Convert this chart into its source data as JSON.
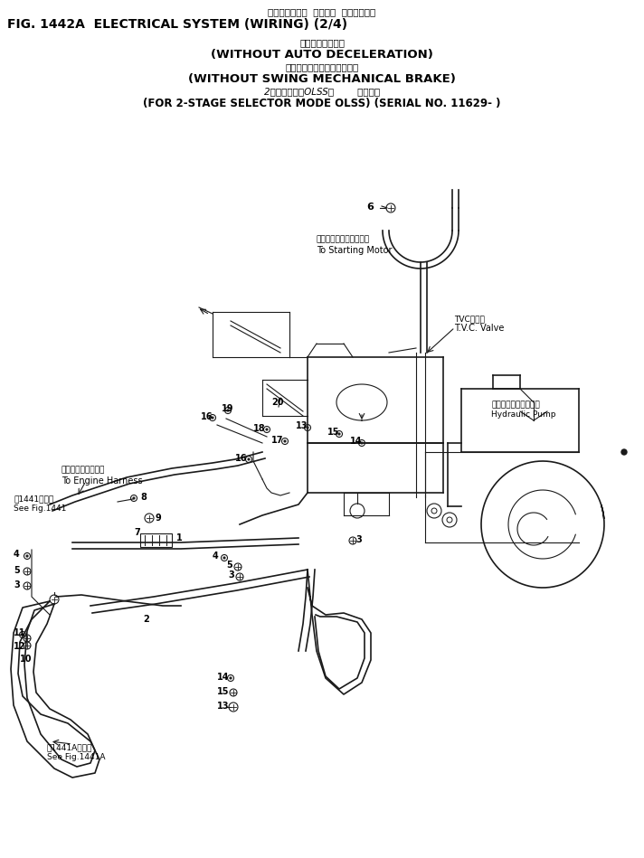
{
  "title_line1_jp": "エレクトリカル  システム  ワイヤリング",
  "title_line1": "FIG. 1442A  ELECTRICAL SYSTEM (WIRING) (2/4)",
  "title_line2_jp": "オートデセルなし",
  "title_line2": "(WITHOUT AUTO DECELERATION)",
  "title_line3_jp": "旋回メカニカルブレーキなし",
  "title_line3": "(WITHOUT SWING MECHANICAL BRAKE)",
  "title_line4_jp": "2段モード切換OLSS用        適用号機",
  "title_line4": "(FOR 2-STAGE SELECTOR MODE OLSS) (SERIAL NO. 11629- )",
  "bg_color": "#ffffff",
  "line_color": "#1a1a1a",
  "starting_motor_jp": "スターティングモータへ",
  "starting_motor_en": "To Starting Motor",
  "tvc_jp": "TVCバルブ",
  "tvc_en": "T.V.C. Valve",
  "hydraulic_jp": "ハイドロリックポンプ",
  "hydraulic_en": "Hydraulic Pump",
  "engine_jp": "エンジンハーネスへ",
  "engine_en": "To Engine Harness",
  "fig1441_jp": "第1441図参照",
  "fig1441_en": "See Fig.1441",
  "fig1441a_jp": "第1441A図参照",
  "fig1441a_en": "See Fig.1441A"
}
